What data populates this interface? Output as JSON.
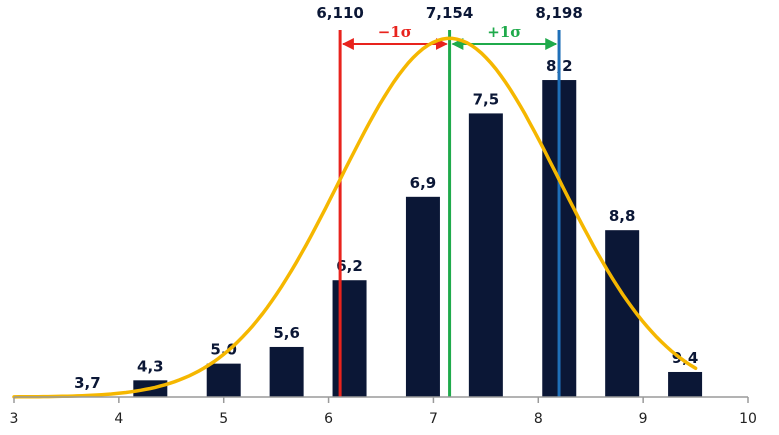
{
  "chart_data": {
    "type": "bar",
    "title": "",
    "xlabel": "",
    "ylabel": "",
    "xlim": [
      3,
      10
    ],
    "x_ticks": [
      "3",
      "4",
      "5",
      "6",
      "7",
      "8",
      "9",
      "10"
    ],
    "bars": [
      {
        "x": 3.7,
        "label": "3,7",
        "value": 0
      },
      {
        "x": 4.3,
        "label": "4,3",
        "value": 1
      },
      {
        "x": 5.0,
        "label": "5,0",
        "value": 2
      },
      {
        "x": 5.6,
        "label": "5,6",
        "value": 3
      },
      {
        "x": 6.2,
        "label": "6,2",
        "value": 7
      },
      {
        "x": 6.9,
        "label": "6,9",
        "value": 12
      },
      {
        "x": 7.5,
        "label": "7,5",
        "value": 17
      },
      {
        "x": 8.2,
        "label": "8,2",
        "value": 19
      },
      {
        "x": 8.8,
        "label": "8,8",
        "value": 10
      },
      {
        "x": 9.4,
        "label": "9,4",
        "value": 1.5
      }
    ],
    "ylim": [
      0,
      22
    ],
    "bar_color": "#0b1736",
    "normal_curve": {
      "mean": 7.154,
      "sd": 1.044,
      "peak": 21.5,
      "x_from": 3,
      "x_to": 9.5,
      "color": "#f5b700"
    },
    "vlines": [
      {
        "x": 6.11,
        "label": "6,110",
        "color": "#e8231d"
      },
      {
        "x": 7.154,
        "label": "7,154",
        "color": "#1faa4b"
      },
      {
        "x": 8.198,
        "label": "8,198",
        "color": "#1f6fb8"
      }
    ],
    "sigma_arrows": [
      {
        "from": 6.11,
        "to": 7.154,
        "label": "−1σ",
        "color": "#e8231d"
      },
      {
        "from": 7.154,
        "to": 8.198,
        "label": "+1σ",
        "color": "#1faa4b"
      }
    ],
    "grid": false
  }
}
